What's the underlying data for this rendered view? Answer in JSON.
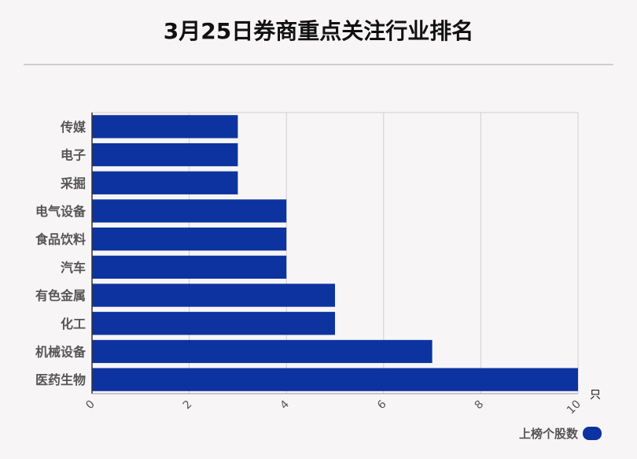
{
  "title": "3月25日券商重点关注行业排名",
  "chart_data": {
    "type": "bar",
    "orientation": "horizontal",
    "categories": [
      "传媒",
      "电子",
      "采掘",
      "电气设备",
      "食品饮料",
      "汽车",
      "有色金属",
      "化工",
      "机械设备",
      "医药生物"
    ],
    "series": [
      {
        "name": "上榜个股数",
        "values": [
          3,
          3,
          3,
          4,
          4,
          4,
          5,
          5,
          7,
          10
        ]
      }
    ],
    "xlim": [
      0,
      10
    ],
    "xticks": [
      "0",
      "2",
      "4",
      "6",
      "8",
      "10"
    ],
    "xunit": "只",
    "grid": true,
    "legend_position": "bottom-right"
  },
  "colors": {
    "bar": "#0d33a0",
    "grid": "#d0d0d0",
    "axis": "#333333",
    "label": "#555555"
  }
}
